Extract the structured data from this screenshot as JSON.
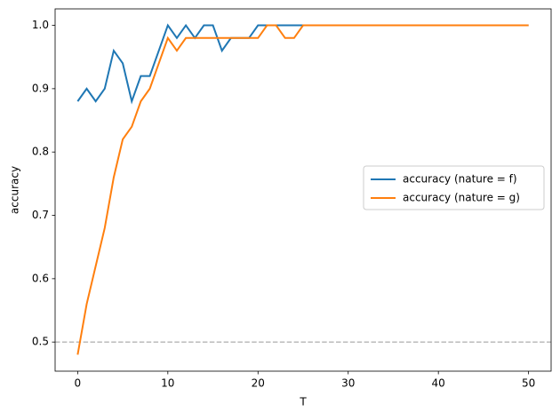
{
  "chart_data": {
    "type": "line",
    "xlabel": "T",
    "ylabel": "accuracy",
    "x": [
      0,
      1,
      2,
      3,
      4,
      5,
      6,
      7,
      8,
      9,
      10,
      11,
      12,
      13,
      14,
      15,
      16,
      17,
      18,
      19,
      20,
      21,
      22,
      23,
      24,
      25,
      26,
      27,
      28,
      29,
      30,
      31,
      32,
      33,
      34,
      35,
      36,
      37,
      38,
      39,
      40,
      41,
      42,
      43,
      44,
      45,
      46,
      47,
      48,
      49,
      50
    ],
    "series": [
      {
        "name": "accuracy (nature = f)",
        "color": "#1f77b4",
        "values": [
          0.88,
          0.9,
          0.88,
          0.9,
          0.96,
          0.94,
          0.88,
          0.92,
          0.92,
          0.96,
          1.0,
          0.98,
          1.0,
          0.98,
          1.0,
          1.0,
          0.96,
          0.98,
          0.98,
          0.98,
          1.0,
          1.0,
          1.0,
          1.0,
          1.0,
          1.0,
          1.0,
          1.0,
          1.0,
          1.0,
          1.0,
          1.0,
          1.0,
          1.0,
          1.0,
          1.0,
          1.0,
          1.0,
          1.0,
          1.0,
          1.0,
          1.0,
          1.0,
          1.0,
          1.0,
          1.0,
          1.0,
          1.0,
          1.0,
          1.0,
          1.0
        ]
      },
      {
        "name": "accuracy (nature = g)",
        "color": "#ff7f0e",
        "values": [
          0.48,
          0.56,
          0.62,
          0.68,
          0.76,
          0.82,
          0.84,
          0.88,
          0.9,
          0.94,
          0.98,
          0.96,
          0.98,
          0.98,
          0.98,
          0.98,
          0.98,
          0.98,
          0.98,
          0.98,
          0.98,
          1.0,
          1.0,
          0.98,
          0.98,
          1.0,
          1.0,
          1.0,
          1.0,
          1.0,
          1.0,
          1.0,
          1.0,
          1.0,
          1.0,
          1.0,
          1.0,
          1.0,
          1.0,
          1.0,
          1.0,
          1.0,
          1.0,
          1.0,
          1.0,
          1.0,
          1.0,
          1.0,
          1.0,
          1.0,
          1.0
        ]
      }
    ],
    "hline": {
      "value": 0.5,
      "color": "#bbbbbb"
    },
    "xlim": [
      -2.5,
      52.5
    ],
    "xticks": [
      0,
      10,
      20,
      30,
      40,
      50
    ],
    "ylim": [
      0.454,
      1.026
    ],
    "yticks": [
      0.5,
      0.6,
      0.7,
      0.8,
      0.9,
      {
        "value": 1.0,
        "label": "1.0"
      }
    ],
    "legend": "right"
  }
}
